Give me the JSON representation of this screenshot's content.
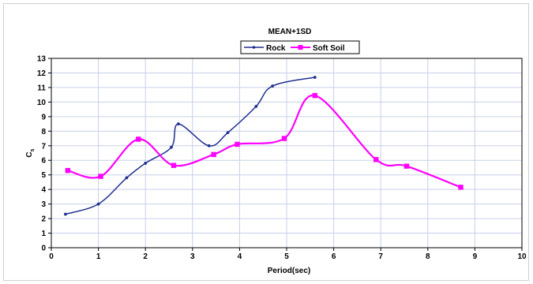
{
  "chart_data": {
    "type": "line",
    "title": "MEAN+1SD",
    "xlabel": "Period(sec)",
    "ylabel": "C",
    "ylabel_sub": "s",
    "xlim": [
      0,
      10
    ],
    "ylim": [
      0,
      13
    ],
    "xticks": [
      "0",
      "1",
      "2",
      "3",
      "4",
      "5",
      "6",
      "7",
      "8",
      "9",
      "10"
    ],
    "yticks": [
      "0",
      "1",
      "2",
      "3",
      "4",
      "5",
      "6",
      "7",
      "8",
      "9",
      "10",
      "11",
      "12",
      "13"
    ],
    "grid": true,
    "legend_position": "top-center",
    "series": [
      {
        "name": "Rock",
        "color": "#1f2f8f",
        "marker": "dot",
        "x": [
          0.3,
          1.0,
          1.6,
          2.0,
          2.55,
          2.7,
          3.35,
          3.75,
          4.35,
          4.7,
          5.6
        ],
        "y": [
          2.3,
          3.0,
          4.8,
          5.8,
          6.9,
          8.5,
          7.0,
          7.9,
          9.7,
          11.1,
          11.7
        ]
      },
      {
        "name": "Soft Soil",
        "color": "#ff00ff",
        "marker": "square",
        "x": [
          0.35,
          1.05,
          1.85,
          2.6,
          3.45,
          3.95,
          4.95,
          5.6,
          6.9,
          7.55,
          8.7
        ],
        "y": [
          5.3,
          4.9,
          7.45,
          5.65,
          6.4,
          7.1,
          7.5,
          10.45,
          6.05,
          5.6,
          4.15
        ]
      }
    ]
  }
}
